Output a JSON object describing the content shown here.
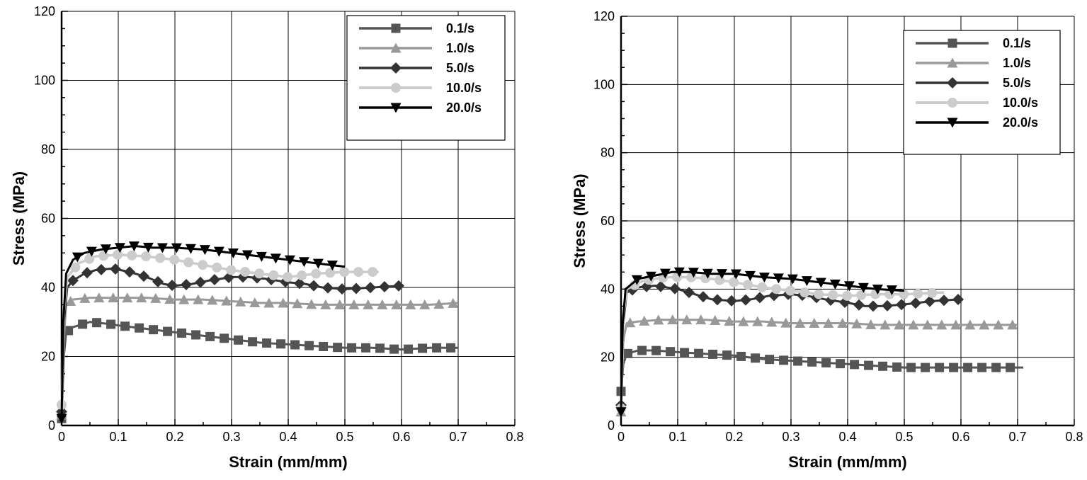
{
  "chart_data": [
    {
      "type": "line",
      "title": "",
      "xlabel": "Strain (mm/mm)",
      "ylabel": "Stress (MPa)",
      "xlim": [
        0,
        0.8
      ],
      "ylim": [
        0,
        120
      ],
      "x_ticks": [
        "0",
        "0.1",
        "0.2",
        "0.3",
        "0.4",
        "0.5",
        "0.6",
        "0.7",
        "0.8"
      ],
      "y_ticks": [
        "0",
        "20",
        "40",
        "60",
        "80",
        "100",
        "120"
      ],
      "grid": true,
      "legend_position": "top-right",
      "series": [
        {
          "name": "0.1/s",
          "color": "#555555",
          "marker": "square",
          "points": [
            [
              0,
              2
            ],
            [
              0.004,
              20
            ],
            [
              0.008,
              27
            ],
            [
              0.02,
              28.5
            ],
            [
              0.05,
              30
            ],
            [
              0.08,
              29.5
            ],
            [
              0.1,
              29
            ],
            [
              0.15,
              28
            ],
            [
              0.2,
              27
            ],
            [
              0.25,
              26
            ],
            [
              0.3,
              25
            ],
            [
              0.35,
              24
            ],
            [
              0.4,
              23.5
            ],
            [
              0.45,
              23
            ],
            [
              0.5,
              22.5
            ],
            [
              0.55,
              22.5
            ],
            [
              0.6,
              22
            ],
            [
              0.65,
              22.5
            ],
            [
              0.7,
              22.5
            ]
          ]
        },
        {
          "name": "1.0/s",
          "color": "#999999",
          "marker": "triangle-up",
          "points": [
            [
              0,
              3
            ],
            [
              0.004,
              25
            ],
            [
              0.008,
              35
            ],
            [
              0.02,
              36.5
            ],
            [
              0.05,
              37
            ],
            [
              0.1,
              37
            ],
            [
              0.15,
              37
            ],
            [
              0.2,
              36.5
            ],
            [
              0.25,
              36.5
            ],
            [
              0.3,
              36
            ],
            [
              0.35,
              35.5
            ],
            [
              0.4,
              35.5
            ],
            [
              0.45,
              35
            ],
            [
              0.5,
              35
            ],
            [
              0.55,
              35
            ],
            [
              0.6,
              35
            ],
            [
              0.65,
              35
            ],
            [
              0.7,
              35.5
            ]
          ]
        },
        {
          "name": "5.0/s",
          "color": "#333333",
          "marker": "diamond",
          "points": [
            [
              0,
              4
            ],
            [
              0.004,
              30
            ],
            [
              0.01,
              40
            ],
            [
              0.02,
              42
            ],
            [
              0.04,
              44
            ],
            [
              0.06,
              45
            ],
            [
              0.09,
              45.5
            ],
            [
              0.12,
              44.5
            ],
            [
              0.15,
              43
            ],
            [
              0.18,
              41
            ],
            [
              0.2,
              40.5
            ],
            [
              0.23,
              41
            ],
            [
              0.26,
              42
            ],
            [
              0.3,
              43
            ],
            [
              0.33,
              43
            ],
            [
              0.36,
              42.5
            ],
            [
              0.4,
              41.5
            ],
            [
              0.43,
              41
            ],
            [
              0.46,
              40
            ],
            [
              0.5,
              39.5
            ],
            [
              0.55,
              40
            ],
            [
              0.6,
              40.5
            ]
          ]
        },
        {
          "name": "10.0/s",
          "color": "#cccccc",
          "marker": "circle",
          "points": [
            [
              0,
              6
            ],
            [
              0.004,
              33
            ],
            [
              0.01,
              43
            ],
            [
              0.03,
              47
            ],
            [
              0.06,
              49
            ],
            [
              0.1,
              49.5
            ],
            [
              0.15,
              49
            ],
            [
              0.2,
              48
            ],
            [
              0.25,
              46.5
            ],
            [
              0.3,
              45
            ],
            [
              0.35,
              44
            ],
            [
              0.4,
              43
            ],
            [
              0.45,
              44
            ],
            [
              0.5,
              44.5
            ],
            [
              0.56,
              44.5
            ]
          ]
        },
        {
          "name": "20.0/s",
          "color": "#000000",
          "marker": "triangle-down",
          "points": [
            [
              0,
              2
            ],
            [
              0.003,
              30
            ],
            [
              0.008,
              44
            ],
            [
              0.02,
              48
            ],
            [
              0.04,
              50
            ],
            [
              0.07,
              51
            ],
            [
              0.1,
              51.5
            ],
            [
              0.13,
              52
            ],
            [
              0.16,
              51.5
            ],
            [
              0.2,
              51.5
            ],
            [
              0.25,
              51
            ],
            [
              0.3,
              50
            ],
            [
              0.35,
              49
            ],
            [
              0.4,
              48
            ],
            [
              0.45,
              47
            ],
            [
              0.5,
              46
            ]
          ]
        }
      ]
    },
    {
      "type": "line",
      "title": "",
      "xlabel": "Strain (mm/mm)",
      "ylabel": "Stress (MPa)",
      "xlim": [
        0,
        0.8
      ],
      "ylim": [
        0,
        120
      ],
      "x_ticks": [
        "0",
        "0.1",
        "0.2",
        "0.3",
        "0.4",
        "0.5",
        "0.6",
        "0.7",
        "0.8"
      ],
      "y_ticks": [
        "0",
        "20",
        "40",
        "60",
        "80",
        "100",
        "120"
      ],
      "grid": true,
      "legend_position": "top-right",
      "series": [
        {
          "name": "0.1/s",
          "color": "#555555",
          "marker": "square",
          "points": [
            [
              0,
              10
            ],
            [
              0.004,
              18
            ],
            [
              0.01,
              21
            ],
            [
              0.03,
              22
            ],
            [
              0.06,
              22
            ],
            [
              0.1,
              21.5
            ],
            [
              0.15,
              21
            ],
            [
              0.2,
              20.5
            ],
            [
              0.25,
              19.5
            ],
            [
              0.3,
              19
            ],
            [
              0.35,
              18.5
            ],
            [
              0.4,
              18
            ],
            [
              0.45,
              17.5
            ],
            [
              0.5,
              17
            ],
            [
              0.55,
              17
            ],
            [
              0.6,
              17
            ],
            [
              0.65,
              17
            ],
            [
              0.71,
              17
            ]
          ]
        },
        {
          "name": "1.0/s",
          "color": "#999999",
          "marker": "triangle-up",
          "points": [
            [
              0,
              4
            ],
            [
              0.004,
              25
            ],
            [
              0.01,
              30
            ],
            [
              0.03,
              30.5
            ],
            [
              0.07,
              31
            ],
            [
              0.1,
              31
            ],
            [
              0.15,
              31
            ],
            [
              0.2,
              30.5
            ],
            [
              0.25,
              30.5
            ],
            [
              0.3,
              30
            ],
            [
              0.35,
              30
            ],
            [
              0.4,
              30
            ],
            [
              0.45,
              29.5
            ],
            [
              0.5,
              29.5
            ],
            [
              0.55,
              29.5
            ],
            [
              0.6,
              29.5
            ],
            [
              0.65,
              29.5
            ],
            [
              0.7,
              29.5
            ]
          ]
        },
        {
          "name": "5.0/s",
          "color": "#333333",
          "marker": "diamond",
          "points": [
            [
              0,
              6
            ],
            [
              0.004,
              30
            ],
            [
              0.01,
              39
            ],
            [
              0.03,
              40.5
            ],
            [
              0.06,
              41
            ],
            [
              0.1,
              40
            ],
            [
              0.13,
              38.5
            ],
            [
              0.16,
              37
            ],
            [
              0.2,
              36.5
            ],
            [
              0.23,
              37
            ],
            [
              0.26,
              38
            ],
            [
              0.3,
              38.5
            ],
            [
              0.33,
              38
            ],
            [
              0.36,
              37
            ],
            [
              0.4,
              36
            ],
            [
              0.43,
              35
            ],
            [
              0.46,
              35
            ],
            [
              0.5,
              35.5
            ],
            [
              0.55,
              36.5
            ],
            [
              0.6,
              37
            ]
          ]
        },
        {
          "name": "10.0/s",
          "color": "#cccccc",
          "marker": "circle",
          "points": [
            [
              0,
              5
            ],
            [
              0.004,
              32
            ],
            [
              0.01,
              40
            ],
            [
              0.04,
              42.5
            ],
            [
              0.08,
              43.5
            ],
            [
              0.12,
              43.5
            ],
            [
              0.16,
              43
            ],
            [
              0.2,
              42
            ],
            [
              0.25,
              40.5
            ],
            [
              0.3,
              39.5
            ],
            [
              0.35,
              38.5
            ],
            [
              0.4,
              38
            ],
            [
              0.45,
              38.5
            ],
            [
              0.5,
              38.5
            ],
            [
              0.57,
              39
            ]
          ]
        },
        {
          "name": "20.0/s",
          "color": "#000000",
          "marker": "triangle-down",
          "points": [
            [
              0,
              4
            ],
            [
              0.003,
              30
            ],
            [
              0.008,
              40
            ],
            [
              0.03,
              43
            ],
            [
              0.06,
              44
            ],
            [
              0.09,
              45
            ],
            [
              0.12,
              45
            ],
            [
              0.16,
              44.5
            ],
            [
              0.2,
              44.5
            ],
            [
              0.25,
              43.5
            ],
            [
              0.3,
              43
            ],
            [
              0.35,
              42
            ],
            [
              0.4,
              41
            ],
            [
              0.45,
              40
            ],
            [
              0.5,
              39.5
            ]
          ]
        }
      ]
    }
  ]
}
